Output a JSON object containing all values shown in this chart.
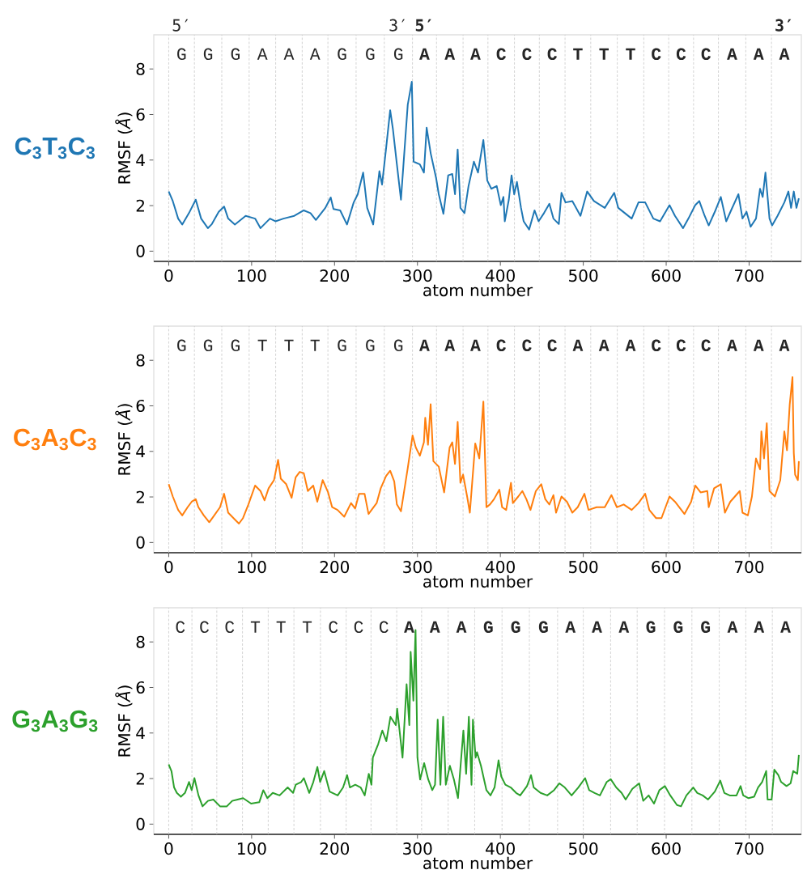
{
  "chart_data": [
    {
      "type": "line",
      "title": "C$_{3}$T$_{3}$C$_{3}$",
      "xlabel": "atom number",
      "ylabel": "RMSF (*Å*)",
      "series": [
        {
          "color": "#1f77b4",
          "x": [
            0,
            4.9,
            11.4,
            16.3,
            24.4,
            32.6,
            39.1,
            47.2,
            52.1,
            60.3,
            66.8,
            71.7,
            79.8,
            92.8,
            104.2,
            110.7,
            122.1,
            128.7,
            138.4,
            151.5,
            162.9,
            171,
            177.5,
            188.9,
            195.4,
            198.7,
            206.8,
            215,
            223.1,
            228,
            234.5,
            239.4,
            246.6,
            254.1,
            257.3,
            262.2,
            267.1,
            270.4,
            275.2,
            280.1,
            288.3,
            293.2,
            295.4,
            302.9,
            307.8,
            311.1,
            316,
            322.5,
            325.7,
            331.3,
            337.1,
            342,
            345.3,
            348.5,
            351.8,
            356.7,
            361.6,
            368.1,
            373,
            379.5,
            384.2,
            389.1,
            395.6,
            400.5,
            403.7,
            405.3,
            410.2,
            413.5,
            416.7,
            420,
            424.9,
            428.1,
            434.7,
            441.2,
            446.1,
            452.6,
            459.1,
            464,
            470.5,
            473.7,
            478.6,
            486.8,
            496.6,
            504.7,
            512.8,
            525.9,
            537.3,
            542.2,
            558.4,
            566.6,
            574.7,
            584.5,
            592.6,
            604,
            610.6,
            620.3,
            626.8,
            635,
            639.9,
            646.4,
            651.3,
            659.4,
            665.9,
            672.4,
            679,
            687.1,
            692,
            696.9,
            701.8,
            708.3,
            713.2,
            716.4,
            719.7,
            724.6,
            727.8,
            734.3,
            742.5,
            747.4,
            750.6,
            753.9,
            757.1,
            760
          ],
          "values": [
            2.62,
            2.2,
            1.43,
            1.17,
            1.67,
            2.26,
            1.43,
            1.01,
            1.19,
            1.73,
            1.96,
            1.43,
            1.17,
            1.55,
            1.43,
            1.01,
            1.43,
            1.31,
            1.43,
            1.55,
            1.79,
            1.67,
            1.37,
            1.9,
            2.36,
            1.85,
            1.79,
            1.17,
            2.14,
            2.5,
            3.45,
            1.9,
            1.17,
            3.51,
            2.92,
            4.52,
            6.19,
            5.36,
            3.81,
            2.26,
            6.43,
            7.44,
            3.93,
            3.81,
            3.45,
            5.42,
            4.29,
            3.21,
            2.5,
            1.64,
            3.33,
            3.39,
            2.5,
            4.46,
            1.9,
            1.67,
            2.86,
            3.93,
            3.45,
            4.88,
            3.1,
            2.74,
            2.86,
            2.02,
            2.38,
            1.31,
            2.26,
            3.33,
            2.5,
            3.04,
            1.9,
            1.31,
            0.95,
            1.79,
            1.31,
            1.67,
            2.08,
            1.43,
            1.19,
            2.56,
            2.14,
            2.2,
            1.55,
            2.62,
            2.2,
            1.9,
            2.56,
            1.9,
            1.43,
            2.14,
            2.14,
            1.43,
            1.31,
            2.02,
            1.55,
            1.01,
            1.43,
            2.02,
            2.2,
            1.55,
            1.13,
            1.79,
            2.38,
            1.31,
            1.85,
            2.5,
            1.43,
            1.73,
            1.07,
            1.43,
            2.74,
            2.38,
            3.45,
            1.43,
            1.13,
            1.55,
            2.14,
            2.62,
            1.9,
            2.62,
            1.9,
            2.32
          ]
        }
      ],
      "xlim": [
        -18,
        763
      ],
      "ylim": [
        -0.45,
        9.5
      ],
      "xticks": [
        0,
        100,
        200,
        300,
        400,
        500,
        600,
        700
      ],
      "yticks": [
        0,
        2,
        4,
        6,
        8
      ],
      "ref_lines": [
        {
          "axis": "x",
          "value": 0,
          "color": "#c8c8c8",
          "line_style": "dashed"
        },
        {
          "axis": "x",
          "value": 31,
          "color": "#c8c8c8",
          "line_style": "dashed"
        },
        {
          "axis": "x",
          "value": 64,
          "color": "#c8c8c8",
          "line_style": "dashed"
        },
        {
          "axis": "x",
          "value": 97,
          "color": "#c8c8c8",
          "line_style": "dashed"
        },
        {
          "axis": "x",
          "value": 129,
          "color": "#c8c8c8",
          "line_style": "dashed"
        },
        {
          "axis": "x",
          "value": 161,
          "color": "#c8c8c8",
          "line_style": "dashed"
        },
        {
          "axis": "x",
          "value": 192,
          "color": "#c8c8c8",
          "line_style": "dashed"
        },
        {
          "axis": "x",
          "value": 226,
          "color": "#c8c8c8",
          "line_style": "dashed"
        },
        {
          "axis": "x",
          "value": 260,
          "color": "#c8c8c8",
          "line_style": "dashed"
        },
        {
          "axis": "x",
          "value": 294,
          "color": "#c8c8c8",
          "line_style": "dashed"
        },
        {
          "axis": "x",
          "value": 323,
          "color": "#c8c8c8",
          "line_style": "dashed"
        },
        {
          "axis": "x",
          "value": 355,
          "color": "#c8c8c8",
          "line_style": "dashed"
        },
        {
          "axis": "x",
          "value": 385,
          "color": "#c8c8c8",
          "line_style": "dashed"
        },
        {
          "axis": "x",
          "value": 417,
          "color": "#c8c8c8",
          "line_style": "dashed"
        },
        {
          "axis": "x",
          "value": 447,
          "color": "#c8c8c8",
          "line_style": "dashed"
        },
        {
          "axis": "x",
          "value": 478,
          "color": "#c8c8c8",
          "line_style": "dashed"
        },
        {
          "axis": "x",
          "value": 509,
          "color": "#c8c8c8",
          "line_style": "dashed"
        },
        {
          "axis": "x",
          "value": 541,
          "color": "#c8c8c8",
          "line_style": "dashed"
        },
        {
          "axis": "x",
          "value": 573,
          "color": "#c8c8c8",
          "line_style": "dashed"
        },
        {
          "axis": "x",
          "value": 603,
          "color": "#c8c8c8",
          "line_style": "dashed"
        },
        {
          "axis": "x",
          "value": 633,
          "color": "#c8c8c8",
          "line_style": "dashed"
        },
        {
          "axis": "x",
          "value": 663,
          "color": "#c8c8c8",
          "line_style": "dashed"
        },
        {
          "axis": "x",
          "value": 696,
          "color": "#c8c8c8",
          "line_style": "dashed"
        },
        {
          "axis": "x",
          "value": 727,
          "color": "#c8c8c8",
          "line_style": "dashed"
        }
      ],
      "annotations": [
        "5′",
        "3′",
        "**5′**",
        "**3′**",
        "G",
        "G",
        "G",
        "A",
        "A",
        "A",
        "G",
        "G",
        "G",
        "**A**",
        "**A**",
        "**A**",
        "**C**",
        "**C**",
        "**C**",
        "**T**",
        "**T**",
        "**T**",
        "**C**",
        "**C**",
        "**C**",
        "**A**",
        "**A**",
        "**A**"
      ]
    },
    {
      "type": "line",
      "title": "C$_{3}$A$_{3}$C$_{3}$",
      "xlabel": "atom number",
      "ylabel": "RMSF (*Å*)",
      "series": [
        {
          "color": "#ff7f0e",
          "x": [
            0,
            4.9,
            11.4,
            16.3,
            22.8,
            27.7,
            32.6,
            35.8,
            42.3,
            48.9,
            53.7,
            61.9,
            66.8,
            71.7,
            79.8,
            84.7,
            89.6,
            96.1,
            104.2,
            110.7,
            115.6,
            120.5,
            127,
            131.9,
            135.2,
            141.7,
            148.2,
            153.1,
            158,
            162.9,
            167.8,
            174.3,
            179.2,
            185.7,
            192.2,
            197.1,
            203.6,
            211.7,
            219.9,
            224.8,
            229.6,
            236.2,
            241,
            250.8,
            255.7,
            262.2,
            267.1,
            272,
            275.2,
            280.1,
            288.3,
            294.1,
            298,
            302.9,
            307.8,
            309.4,
            312.7,
            315.9,
            319.2,
            325.7,
            332.2,
            338.8,
            342,
            345.3,
            348.5,
            351.8,
            355,
            359.9,
            363.2,
            369.7,
            374.6,
            379.5,
            383.2,
            387.4,
            392.3,
            398.8,
            402.1,
            407,
            412.8,
            415.1,
            421.6,
            426.5,
            431.4,
            436.3,
            442.8,
            449.3,
            454.2,
            459.1,
            464,
            467.2,
            473.7,
            480.3,
            486.8,
            493.3,
            501.4,
            506.3,
            516.1,
            525.9,
            534,
            540.5,
            548.7,
            558.4,
            566.6,
            574.7,
            579.6,
            587.8,
            594.3,
            604,
            610.6,
            622,
            630.1,
            635,
            641.5,
            649.6,
            651.3,
            657.8,
            665.9,
            670.8,
            677.3,
            688.7,
            692,
            698.5,
            703.4,
            708.3,
            713.2,
            714.8,
            718,
            721.3,
            724.6,
            731.1,
            737.6,
            742.5,
            745.7,
            749,
            752.3,
            753.9,
            755.5,
            758.8,
            760
          ],
          "values": [
            2.56,
            2.02,
            1.43,
            1.19,
            1.55,
            1.79,
            1.9,
            1.55,
            1.19,
            0.89,
            1.13,
            1.55,
            2.14,
            1.31,
            1.01,
            0.83,
            1.07,
            1.67,
            2.5,
            2.26,
            1.85,
            2.38,
            2.74,
            3.63,
            2.8,
            2.56,
            1.96,
            2.86,
            3.1,
            3.04,
            2.26,
            2.5,
            1.79,
            2.74,
            2.2,
            1.55,
            1.43,
            1.13,
            1.73,
            1.49,
            2.14,
            2.14,
            1.25,
            1.73,
            2.38,
            2.92,
            3.15,
            2.68,
            1.67,
            1.37,
            3.27,
            4.7,
            4.17,
            3.81,
            4.4,
            5.48,
            4.29,
            6.07,
            3.57,
            3.33,
            2.2,
            4.17,
            4.4,
            3.45,
            5.3,
            2.62,
            2.98,
            2.02,
            1.31,
            4.35,
            3.69,
            6.19,
            1.55,
            1.67,
            1.9,
            2.32,
            1.55,
            1.43,
            2.62,
            1.73,
            2.02,
            2.26,
            1.9,
            1.43,
            2.26,
            2.56,
            1.9,
            1.67,
            2.08,
            1.31,
            2.02,
            1.79,
            1.31,
            1.55,
            2.14,
            1.43,
            1.55,
            1.55,
            2.08,
            1.55,
            1.67,
            1.43,
            1.73,
            2.14,
            1.43,
            1.07,
            1.07,
            2.02,
            1.79,
            1.25,
            1.79,
            2.5,
            2.2,
            2.26,
            1.55,
            2.38,
            2.56,
            1.31,
            1.79,
            2.26,
            1.31,
            1.19,
            2.02,
            3.69,
            3.21,
            4.88,
            3.69,
            5.24,
            2.26,
            2.02,
            2.74,
            4.88,
            4.05,
            6.07,
            7.26,
            3.93,
            2.98,
            2.74,
            3.57
          ]
        }
      ],
      "xlim": [
        -18,
        763
      ],
      "ylim": [
        -0.45,
        9.5
      ],
      "xticks": [
        0,
        100,
        200,
        300,
        400,
        500,
        600,
        700
      ],
      "yticks": [
        0,
        2,
        4,
        6,
        8
      ],
      "ref_lines": [
        {
          "axis": "x",
          "value": 0,
          "color": "#c8c8c8",
          "line_style": "dashed"
        },
        {
          "axis": "x",
          "value": 31,
          "color": "#c8c8c8",
          "line_style": "dashed"
        },
        {
          "axis": "x",
          "value": 64,
          "color": "#c8c8c8",
          "line_style": "dashed"
        },
        {
          "axis": "x",
          "value": 97,
          "color": "#c8c8c8",
          "line_style": "dashed"
        },
        {
          "axis": "x",
          "value": 129,
          "color": "#c8c8c8",
          "line_style": "dashed"
        },
        {
          "axis": "x",
          "value": 161,
          "color": "#c8c8c8",
          "line_style": "dashed"
        },
        {
          "axis": "x",
          "value": 192,
          "color": "#c8c8c8",
          "line_style": "dashed"
        },
        {
          "axis": "x",
          "value": 226,
          "color": "#c8c8c8",
          "line_style": "dashed"
        },
        {
          "axis": "x",
          "value": 260,
          "color": "#c8c8c8",
          "line_style": "dashed"
        },
        {
          "axis": "x",
          "value": 294,
          "color": "#c8c8c8",
          "line_style": "dashed"
        },
        {
          "axis": "x",
          "value": 323,
          "color": "#c8c8c8",
          "line_style": "dashed"
        },
        {
          "axis": "x",
          "value": 355,
          "color": "#c8c8c8",
          "line_style": "dashed"
        },
        {
          "axis": "x",
          "value": 385,
          "color": "#c8c8c8",
          "line_style": "dashed"
        },
        {
          "axis": "x",
          "value": 417,
          "color": "#c8c8c8",
          "line_style": "dashed"
        },
        {
          "axis": "x",
          "value": 447,
          "color": "#c8c8c8",
          "line_style": "dashed"
        },
        {
          "axis": "x",
          "value": 478,
          "color": "#c8c8c8",
          "line_style": "dashed"
        },
        {
          "axis": "x",
          "value": 509,
          "color": "#c8c8c8",
          "line_style": "dashed"
        },
        {
          "axis": "x",
          "value": 541,
          "color": "#c8c8c8",
          "line_style": "dashed"
        },
        {
          "axis": "x",
          "value": 573,
          "color": "#c8c8c8",
          "line_style": "dashed"
        },
        {
          "axis": "x",
          "value": 603,
          "color": "#c8c8c8",
          "line_style": "dashed"
        },
        {
          "axis": "x",
          "value": 633,
          "color": "#c8c8c8",
          "line_style": "dashed"
        },
        {
          "axis": "x",
          "value": 663,
          "color": "#c8c8c8",
          "line_style": "dashed"
        },
        {
          "axis": "x",
          "value": 696,
          "color": "#c8c8c8",
          "line_style": "dashed"
        },
        {
          "axis": "x",
          "value": 727,
          "color": "#c8c8c8",
          "line_style": "dashed"
        }
      ],
      "annotations": [
        "G",
        "G",
        "G",
        "T",
        "T",
        "T",
        "G",
        "G",
        "G",
        "**A**",
        "**A**",
        "**A**",
        "**C**",
        "**C**",
        "**C**",
        "**A**",
        "**A**",
        "**A**",
        "**C**",
        "**C**",
        "**C**",
        "**A**",
        "**A**",
        "**A**"
      ]
    },
    {
      "type": "line",
      "title": "G$_{3}$A$_{3}$G$_{3}$",
      "xlabel": "atom number",
      "ylabel": "RMSF (*Å*)",
      "series": [
        {
          "color": "#2ca02c",
          "x": [
            0,
            3.3,
            6.5,
            9.8,
            14.7,
            19.6,
            24.5,
            27.7,
            31,
            35.9,
            40.8,
            47.3,
            53.8,
            61.9,
            70.1,
            76.6,
            83.1,
            89.7,
            99.4,
            109.2,
            114.1,
            119,
            125.5,
            133.7,
            143.5,
            150,
            153.2,
            159.8,
            163,
            169.5,
            174.4,
            179.3,
            182.6,
            187.5,
            194,
            203.8,
            210.3,
            215.2,
            218.5,
            225,
            231.5,
            236.4,
            241.3,
            244.5,
            246.2,
            252.7,
            257.6,
            262.5,
            267.4,
            273.9,
            275.5,
            282,
            286.9,
            290.2,
            291.8,
            295.1,
            297.7,
            300,
            303.2,
            308.1,
            313,
            317.9,
            321.2,
            324.4,
            327.7,
            331,
            334.2,
            339.1,
            344,
            348.9,
            355.4,
            358.7,
            362,
            365.2,
            366.9,
            370.1,
            371.8,
            376.6,
            383.2,
            388.1,
            393,
            397.8,
            401.1,
            406,
            412.5,
            419,
            423.9,
            432.1,
            437,
            440.2,
            448.4,
            456.5,
            464.7,
            471.2,
            477.7,
            485.9,
            494,
            502.2,
            507.1,
            513.6,
            520.1,
            528.3,
            533.1,
            539.7,
            546.2,
            551.1,
            559.2,
            567.4,
            572.3,
            578.8,
            585.3,
            591.8,
            598.4,
            604.9,
            613,
            617.9,
            624.4,
            632.6,
            637.5,
            644,
            650.5,
            658.7,
            665.2,
            670.1,
            676.6,
            684.8,
            689.7,
            692.9,
            699.4,
            706,
            710.8,
            715.7,
            720.6,
            722.3,
            727.2,
            730.4,
            735.3,
            738.6,
            745.1,
            750,
            753.2,
            758.1,
            760
          ],
          "values": [
            2.62,
            2.33,
            1.61,
            1.37,
            1.2,
            1.37,
            1.85,
            1.49,
            2.02,
            1.26,
            0.78,
            1.02,
            1.08,
            0.78,
            0.78,
            1.02,
            1.08,
            1.14,
            0.9,
            0.96,
            1.49,
            1.14,
            1.37,
            1.26,
            1.61,
            1.37,
            1.73,
            1.85,
            2.02,
            1.37,
            1.85,
            2.51,
            1.85,
            2.33,
            1.43,
            1.26,
            1.61,
            2.15,
            1.61,
            1.73,
            1.61,
            1.26,
            2.21,
            1.73,
            2.92,
            3.52,
            4.11,
            3.64,
            4.71,
            4.35,
            5.07,
            2.92,
            6.14,
            4.35,
            7.56,
            5.42,
            8.52,
            2.92,
            1.96,
            2.68,
            1.96,
            1.49,
            1.73,
            4.59,
            1.73,
            4.71,
            1.73,
            2.56,
            1.96,
            1.14,
            4.11,
            2.21,
            4.71,
            1.73,
            4.59,
            2.92,
            3.16,
            2.56,
            1.49,
            1.26,
            1.61,
            2.8,
            2.09,
            1.73,
            1.61,
            1.37,
            1.26,
            1.67,
            2.15,
            1.61,
            1.37,
            1.26,
            1.49,
            1.79,
            1.61,
            1.26,
            1.61,
            2.02,
            1.49,
            1.37,
            1.26,
            1.85,
            1.97,
            1.61,
            1.37,
            1.08,
            1.55,
            1.79,
            1.02,
            1.26,
            0.9,
            1.49,
            1.67,
            1.26,
            0.84,
            0.78,
            1.26,
            1.61,
            1.37,
            1.26,
            1.08,
            1.43,
            1.91,
            1.37,
            1.26,
            1.26,
            1.67,
            1.26,
            1.14,
            1.2,
            1.61,
            1.85,
            2.33,
            1.08,
            1.08,
            2.39,
            2.15,
            1.85,
            1.67,
            1.79,
            2.33,
            2.21,
            3.04
          ]
        }
      ],
      "xlim": [
        -18,
        763
      ],
      "ylim": [
        -0.45,
        9.5
      ],
      "xticks": [
        0,
        100,
        200,
        300,
        400,
        500,
        600,
        700
      ],
      "yticks": [
        0,
        2,
        4,
        6,
        8
      ],
      "ref_lines": [
        {
          "axis": "x",
          "value": 0,
          "color": "#c8c8c8",
          "line_style": "dashed"
        },
        {
          "axis": "x",
          "value": 28,
          "color": "#c8c8c8",
          "line_style": "dashed"
        },
        {
          "axis": "x",
          "value": 58,
          "color": "#c8c8c8",
          "line_style": "dashed"
        },
        {
          "axis": "x",
          "value": 89,
          "color": "#c8c8c8",
          "line_style": "dashed"
        },
        {
          "axis": "x",
          "value": 120,
          "color": "#c8c8c8",
          "line_style": "dashed"
        },
        {
          "axis": "x",
          "value": 151,
          "color": "#c8c8c8",
          "line_style": "dashed"
        },
        {
          "axis": "x",
          "value": 183,
          "color": "#c8c8c8",
          "line_style": "dashed"
        },
        {
          "axis": "x",
          "value": 214,
          "color": "#c8c8c8",
          "line_style": "dashed"
        },
        {
          "axis": "x",
          "value": 244,
          "color": "#c8c8c8",
          "line_style": "dashed"
        },
        {
          "axis": "x",
          "value": 275,
          "color": "#c8c8c8",
          "line_style": "dashed"
        },
        {
          "axis": "x",
          "value": 305,
          "color": "#c8c8c8",
          "line_style": "dashed"
        },
        {
          "axis": "x",
          "value": 337,
          "color": "#c8c8c8",
          "line_style": "dashed"
        },
        {
          "axis": "x",
          "value": 369,
          "color": "#c8c8c8",
          "line_style": "dashed"
        },
        {
          "axis": "x",
          "value": 402,
          "color": "#c8c8c8",
          "line_style": "dashed"
        },
        {
          "axis": "x",
          "value": 435,
          "color": "#c8c8c8",
          "line_style": "dashed"
        },
        {
          "axis": "x",
          "value": 469,
          "color": "#c8c8c8",
          "line_style": "dashed"
        },
        {
          "axis": "x",
          "value": 500,
          "color": "#c8c8c8",
          "line_style": "dashed"
        },
        {
          "axis": "x",
          "value": 533,
          "color": "#c8c8c8",
          "line_style": "dashed"
        },
        {
          "axis": "x",
          "value": 565,
          "color": "#c8c8c8",
          "line_style": "dashed"
        },
        {
          "axis": "x",
          "value": 598,
          "color": "#c8c8c8",
          "line_style": "dashed"
        },
        {
          "axis": "x",
          "value": 631,
          "color": "#c8c8c8",
          "line_style": "dashed"
        },
        {
          "axis": "x",
          "value": 664,
          "color": "#c8c8c8",
          "line_style": "dashed"
        },
        {
          "axis": "x",
          "value": 696,
          "color": "#c8c8c8",
          "line_style": "dashed"
        },
        {
          "axis": "x",
          "value": 728,
          "color": "#c8c8c8",
          "line_style": "dashed"
        }
      ],
      "annotations": [
        "C",
        "C",
        "C",
        "T",
        "T",
        "T",
        "C",
        "C",
        "C",
        "**A**",
        "**A**",
        "**A**",
        "**G**",
        "**G**",
        "**G**",
        "**A**",
        "**A**",
        "**A**",
        "**G**",
        "**G**",
        "**G**",
        "**A**",
        "**A**",
        "**A**"
      ]
    }
  ]
}
